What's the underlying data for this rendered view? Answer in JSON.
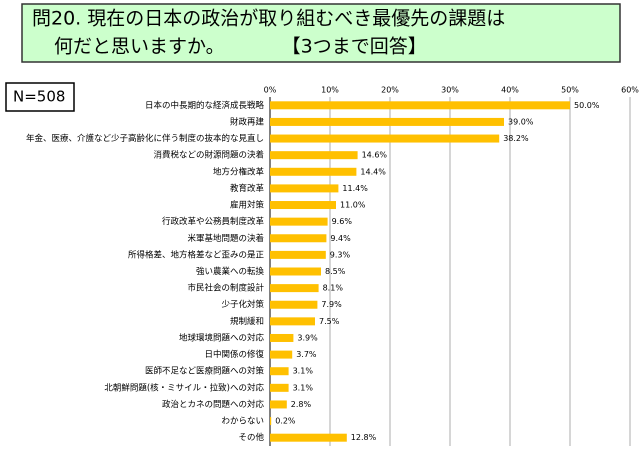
{
  "chart_data": {
    "type": "hbar",
    "title": [
      "問20. 現在の日本の政治が取り組むべき最優先の課題は",
      "何だと思いますか。　　　　【3つまで回答】"
    ],
    "annotation": "N=508",
    "categories": [
      "日本の中長期的な経済成長戦略",
      "財政再建",
      "年金、医療、介護など少子高齢化に伴う制度の抜本的な見直し",
      "消費税などの財源問題の決着",
      "地方分権改革",
      "教育改革",
      "雇用対策",
      "行政改革や公務員制度改革",
      "米軍基地問題の決着",
      "所得格差、地方格差など歪みの是正",
      "強い農業への転換",
      "市民社会の制度設計",
      "少子化対策",
      "規制緩和",
      "地球環境問題への対応",
      "日中関係の修復",
      "医師不足など医療問題への対策",
      "北朝鮮問題(核・ミサイル・拉致)への対応",
      "政治とカネの問題への対応",
      "わからない",
      "その他"
    ],
    "values": [
      50.0,
      39.0,
      38.2,
      14.6,
      14.4,
      11.4,
      11.0,
      9.6,
      9.4,
      9.3,
      8.5,
      8.1,
      7.9,
      7.5,
      3.9,
      3.7,
      3.1,
      3.1,
      2.8,
      0.2,
      12.8
    ],
    "value_labels": [
      "50.0%",
      "39.0%",
      "38.2%",
      "14.6%",
      "14.4%",
      "11.4%",
      "11.0%",
      "9.6%",
      "9.4%",
      "9.3%",
      "8.5%",
      "8.1%",
      "7.9%",
      "7.5%",
      "3.9%",
      "3.7%",
      "3.1%",
      "3.1%",
      "2.8%",
      "0.2%",
      "12.8%"
    ],
    "color": "#ffc000",
    "xlim": [
      0,
      60
    ],
    "xticks": [
      {
        "value": 0,
        "label": "0%"
      },
      {
        "value": 10,
        "label": "10%"
      },
      {
        "value": 20,
        "label": "20%"
      },
      {
        "value": 30,
        "label": "30%"
      },
      {
        "value": 40,
        "label": "40%"
      },
      {
        "value": 50,
        "label": "50%"
      },
      {
        "value": 60,
        "label": "60%"
      }
    ],
    "grid": true
  }
}
